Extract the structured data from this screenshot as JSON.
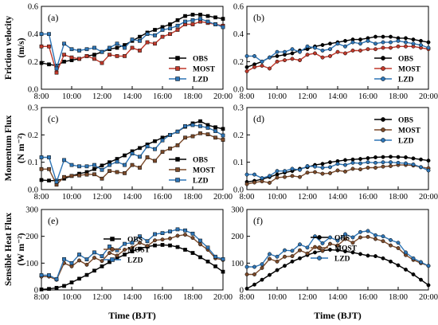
{
  "figure": {
    "xlabel": "Time (BJT)",
    "row_labels": [
      {
        "line1": "Friction velocity",
        "line2": "(m/s)"
      },
      {
        "line1": "Momentum Flux",
        "line2": "(N m⁻²)"
      },
      {
        "line1": "Sensible Heat Flux",
        "line2": "(W m⁻²)"
      }
    ]
  },
  "chart_data": [
    {
      "type": "line",
      "panel": "(a)",
      "x": [
        "8:00",
        "8:30",
        "9:00",
        "9:30",
        "10:00",
        "10:30",
        "11:00",
        "11:30",
        "12:00",
        "12:30",
        "13:00",
        "13:30",
        "14:00",
        "14:30",
        "15:00",
        "15:30",
        "16:00",
        "16:30",
        "17:00",
        "17:30",
        "18:00",
        "18:30",
        "19:00",
        "19:30",
        "20:00"
      ],
      "x_ticks": [
        "8:00",
        "10:00",
        "12:00",
        "14:00",
        "16:00",
        "18:00",
        "20:00"
      ],
      "ylim": [
        0,
        0.6
      ],
      "y_ticks": [
        "0.0",
        "0.2",
        "0.4",
        "0.6"
      ],
      "legend": "bottom-right",
      "series": [
        {
          "name": "OBS",
          "color": "#000000",
          "marker": "square",
          "values": [
            0.19,
            0.18,
            0.17,
            0.2,
            0.21,
            0.22,
            0.24,
            0.25,
            0.27,
            0.29,
            0.3,
            0.32,
            0.35,
            0.38,
            0.41,
            0.43,
            0.45,
            0.47,
            0.5,
            0.53,
            0.54,
            0.54,
            0.53,
            0.52,
            0.51
          ]
        },
        {
          "name": "MOST",
          "color": "#c0392b",
          "marker": "square",
          "values": [
            0.31,
            0.31,
            0.12,
            0.25,
            0.23,
            0.22,
            0.24,
            0.22,
            0.19,
            0.25,
            0.24,
            0.24,
            0.3,
            0.28,
            0.34,
            0.33,
            0.38,
            0.4,
            0.43,
            0.47,
            0.47,
            0.49,
            0.48,
            0.47,
            0.46
          ]
        },
        {
          "name": "LZD",
          "color": "#2e75b6",
          "marker": "square",
          "values": [
            0.4,
            0.4,
            0.15,
            0.33,
            0.29,
            0.28,
            0.29,
            0.3,
            0.27,
            0.3,
            0.33,
            0.3,
            0.36,
            0.35,
            0.4,
            0.39,
            0.43,
            0.44,
            0.46,
            0.49,
            0.5,
            0.51,
            0.49,
            0.47,
            0.45
          ]
        }
      ]
    },
    {
      "type": "line",
      "panel": "(b)",
      "x": [
        "8:00",
        "8:30",
        "9:00",
        "9:30",
        "10:00",
        "10:30",
        "11:00",
        "11:30",
        "12:00",
        "12:30",
        "13:00",
        "13:30",
        "14:00",
        "14:30",
        "15:00",
        "15:30",
        "16:00",
        "16:30",
        "17:00",
        "17:30",
        "18:00",
        "18:30",
        "19:00",
        "19:30",
        "20:00"
      ],
      "x_ticks": [
        "8:00",
        "10:00",
        "12:00",
        "14:00",
        "16:00",
        "18:00",
        "20:00"
      ],
      "ylim": [
        0,
        0.6
      ],
      "y_ticks": [
        "0.0",
        "0.2",
        "0.4",
        "0.6"
      ],
      "legend": "bottom-right",
      "series": [
        {
          "name": "OBS",
          "color": "#000000",
          "marker": "circle",
          "values": [
            0.16,
            0.18,
            0.2,
            0.23,
            0.24,
            0.25,
            0.26,
            0.28,
            0.29,
            0.31,
            0.32,
            0.33,
            0.34,
            0.35,
            0.36,
            0.36,
            0.37,
            0.38,
            0.38,
            0.38,
            0.37,
            0.37,
            0.36,
            0.35,
            0.34
          ]
        },
        {
          "name": "MOST",
          "color": "#c0392b",
          "marker": "circle",
          "values": [
            0.13,
            0.16,
            0.17,
            0.15,
            0.2,
            0.21,
            0.22,
            0.21,
            0.25,
            0.26,
            0.23,
            0.24,
            0.27,
            0.26,
            0.28,
            0.28,
            0.29,
            0.29,
            0.3,
            0.3,
            0.31,
            0.31,
            0.31,
            0.3,
            0.29
          ]
        },
        {
          "name": "LZD",
          "color": "#2e75b6",
          "marker": "circle",
          "values": [
            0.24,
            0.24,
            0.2,
            0.23,
            0.27,
            0.27,
            0.29,
            0.27,
            0.31,
            0.3,
            0.28,
            0.29,
            0.33,
            0.31,
            0.34,
            0.33,
            0.35,
            0.33,
            0.34,
            0.34,
            0.35,
            0.34,
            0.33,
            0.32,
            0.3
          ]
        }
      ]
    },
    {
      "type": "line",
      "panel": "(c)",
      "x": [
        "8:00",
        "8:30",
        "9:00",
        "9:30",
        "10:00",
        "10:30",
        "11:00",
        "11:30",
        "12:00",
        "12:30",
        "13:00",
        "13:30",
        "14:00",
        "14:30",
        "15:00",
        "15:30",
        "16:00",
        "16:30",
        "17:00",
        "17:30",
        "18:00",
        "18:30",
        "19:00",
        "19:30",
        "20:00"
      ],
      "x_ticks": [
        "8:00",
        "10:00",
        "12:00",
        "14:00",
        "16:00",
        "18:00",
        "20:00"
      ],
      "ylim": [
        0,
        0.3
      ],
      "y_ticks": [
        "0.0",
        "0.1",
        "0.2",
        "0.3"
      ],
      "legend": "bottom-right",
      "series": [
        {
          "name": "OBS",
          "color": "#000000",
          "marker": "square",
          "values": [
            0.035,
            0.033,
            0.033,
            0.04,
            0.05,
            0.058,
            0.064,
            0.075,
            0.088,
            0.1,
            0.112,
            0.125,
            0.14,
            0.152,
            0.165,
            0.177,
            0.19,
            0.2,
            0.212,
            0.23,
            0.242,
            0.25,
            0.236,
            0.228,
            0.222
          ]
        },
        {
          "name": "MOST",
          "color": "#7b4a2a",
          "marker": "square",
          "values": [
            0.075,
            0.075,
            0.018,
            0.046,
            0.05,
            0.052,
            0.055,
            0.056,
            0.04,
            0.068,
            0.064,
            0.06,
            0.09,
            0.08,
            0.118,
            0.105,
            0.138,
            0.15,
            0.162,
            0.19,
            0.195,
            0.206,
            0.202,
            0.19,
            0.182
          ]
        },
        {
          "name": "LZD",
          "color": "#2e75b6",
          "marker": "square",
          "values": [
            0.118,
            0.118,
            0.028,
            0.108,
            0.09,
            0.085,
            0.085,
            0.09,
            0.072,
            0.09,
            0.102,
            0.09,
            0.132,
            0.12,
            0.158,
            0.148,
            0.18,
            0.2,
            0.212,
            0.232,
            0.236,
            0.232,
            0.226,
            0.214,
            0.198
          ]
        }
      ]
    },
    {
      "type": "line",
      "panel": "(d)",
      "x": [
        "8:00",
        "8:30",
        "9:00",
        "9:30",
        "10:00",
        "10:30",
        "11:00",
        "11:30",
        "12:00",
        "12:30",
        "13:00",
        "13:30",
        "14:00",
        "14:30",
        "15:00",
        "15:30",
        "16:00",
        "16:30",
        "17:00",
        "17:30",
        "18:00",
        "18:30",
        "19:00",
        "19:30",
        "20:00"
      ],
      "x_ticks": [
        "8:00",
        "10:00",
        "12:00",
        "14:00",
        "16:00",
        "18:00",
        "20:00"
      ],
      "ylim": [
        0,
        0.3
      ],
      "y_ticks": [
        "0.0",
        "0.1",
        "0.2",
        "0.3"
      ],
      "legend": "top-right",
      "series": [
        {
          "name": "OBS",
          "color": "#000000",
          "marker": "circle",
          "values": [
            0.028,
            0.032,
            0.038,
            0.046,
            0.055,
            0.062,
            0.068,
            0.076,
            0.082,
            0.09,
            0.094,
            0.1,
            0.104,
            0.108,
            0.11,
            0.112,
            0.115,
            0.118,
            0.119,
            0.12,
            0.119,
            0.118,
            0.114,
            0.11,
            0.106
          ]
        },
        {
          "name": "MOST",
          "color": "#7b4a2a",
          "marker": "circle",
          "values": [
            0.02,
            0.026,
            0.03,
            0.025,
            0.044,
            0.046,
            0.05,
            0.046,
            0.062,
            0.064,
            0.058,
            0.06,
            0.07,
            0.066,
            0.076,
            0.074,
            0.08,
            0.08,
            0.084,
            0.086,
            0.09,
            0.09,
            0.088,
            0.082,
            0.078
          ]
        },
        {
          "name": "LZD",
          "color": "#2e75b6",
          "marker": "circle",
          "values": [
            0.055,
            0.055,
            0.042,
            0.05,
            0.068,
            0.068,
            0.076,
            0.072,
            0.086,
            0.084,
            0.08,
            0.082,
            0.094,
            0.09,
            0.098,
            0.096,
            0.1,
            0.098,
            0.1,
            0.1,
            0.098,
            0.096,
            0.092,
            0.082,
            0.07
          ]
        }
      ]
    },
    {
      "type": "line",
      "panel": "(e)",
      "x": [
        "8:00",
        "8:30",
        "9:00",
        "9:30",
        "10:00",
        "10:30",
        "11:00",
        "11:30",
        "12:00",
        "12:30",
        "13:00",
        "13:30",
        "14:00",
        "14:30",
        "15:00",
        "15:30",
        "16:00",
        "16:30",
        "17:00",
        "17:30",
        "18:00",
        "18:30",
        "19:00",
        "19:30",
        "20:00"
      ],
      "x_ticks": [
        "8:00",
        "10:00",
        "12:00",
        "14:00",
        "16:00",
        "18:00",
        "20:00"
      ],
      "ylim": [
        0,
        300
      ],
      "y_ticks": [
        "0",
        "100",
        "200",
        "300"
      ],
      "legend": "bottom-left",
      "series": [
        {
          "name": "OBS",
          "color": "#000000",
          "marker": "square",
          "values": [
            2,
            4,
            8,
            15,
            28,
            42,
            56,
            72,
            88,
            104,
            118,
            132,
            144,
            154,
            162,
            166,
            168,
            166,
            160,
            150,
            138,
            122,
            106,
            88,
            68
          ]
        },
        {
          "name": "MOST",
          "color": "#7b4a2a",
          "marker": "circle",
          "values": [
            50,
            50,
            38,
            100,
            88,
            110,
            94,
            120,
            108,
            138,
            128,
            150,
            158,
            176,
            164,
            185,
            188,
            192,
            202,
            206,
            194,
            170,
            150,
            118,
            112
          ]
        },
        {
          "name": "LZD",
          "color": "#2e75b6",
          "marker": "square",
          "values": [
            55,
            55,
            40,
            115,
            100,
            132,
            114,
            140,
            126,
            162,
            148,
            172,
            176,
            200,
            182,
            208,
            212,
            218,
            226,
            222,
            210,
            184,
            158,
            124,
            115
          ]
        }
      ]
    },
    {
      "type": "line",
      "panel": "(f)",
      "x": [
        "8:00",
        "8:30",
        "9:00",
        "9:30",
        "10:00",
        "10:30",
        "11:00",
        "11:30",
        "12:00",
        "12:30",
        "13:00",
        "13:30",
        "14:00",
        "14:30",
        "15:00",
        "15:30",
        "16:00",
        "16:30",
        "17:00",
        "17:30",
        "18:00",
        "18:30",
        "19:00",
        "19:30",
        "20:00"
      ],
      "x_ticks": [
        "8:00",
        "10:00",
        "12:00",
        "14:00",
        "16:00",
        "18:00",
        "20:00"
      ],
      "ylim": [
        0,
        300
      ],
      "y_ticks": [
        "0",
        "100",
        "200",
        "300"
      ],
      "legend": "top-left",
      "series": [
        {
          "name": "OBS",
          "color": "#000000",
          "marker": "circle",
          "values": [
            5,
            20,
            38,
            56,
            74,
            90,
            106,
            118,
            130,
            140,
            146,
            150,
            148,
            144,
            140,
            134,
            128,
            126,
            118,
            106,
            92,
            76,
            58,
            38,
            18
          ]
        },
        {
          "name": "MOST",
          "color": "#7b4a2a",
          "marker": "circle",
          "values": [
            58,
            58,
            82,
            116,
            106,
            124,
            126,
            148,
            136,
            160,
            146,
            172,
            166,
            190,
            176,
            196,
            198,
            190,
            182,
            166,
            156,
            130,
            112,
            100,
            90
          ]
        },
        {
          "name": "LZD",
          "color": "#2e75b6",
          "marker": "circle",
          "values": [
            86,
            86,
            96,
            134,
            124,
            148,
            146,
            170,
            158,
            200,
            174,
            196,
            184,
            208,
            196,
            216,
            220,
            204,
            200,
            186,
            176,
            140,
            118,
            104,
            90
          ]
        }
      ]
    }
  ]
}
